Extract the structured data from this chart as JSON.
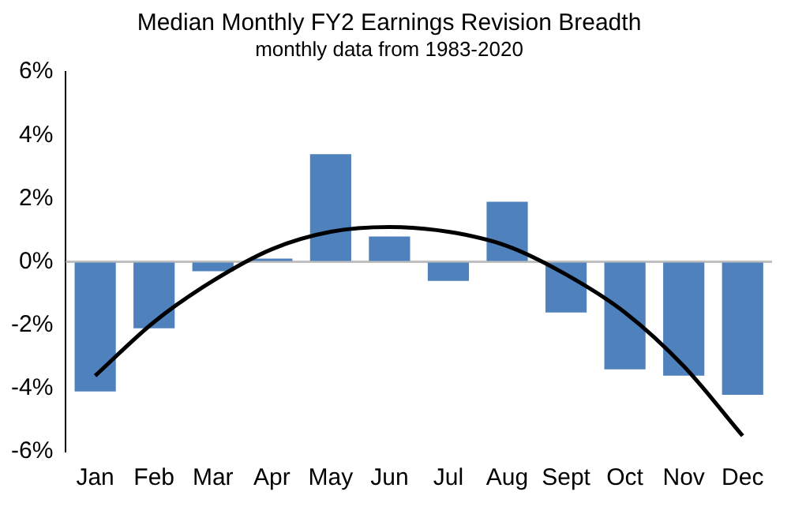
{
  "chart_data": {
    "type": "bar",
    "title": "Median Monthly FY2 Earnings Revision Breadth",
    "subtitle": "monthly data from 1983-2020",
    "categories": [
      "Jan",
      "Feb",
      "Mar",
      "Apr",
      "May",
      "Jun",
      "Jul",
      "Aug",
      "Sept",
      "Oct",
      "Nov",
      "Dec"
    ],
    "series": [
      {
        "color": "#4f81bd",
        "values": [
          -4.1,
          -2.1,
          -0.3,
          0.1,
          3.4,
          0.8,
          -0.6,
          1.9,
          -1.6,
          -3.4,
          -3.6,
          -4.2
        ]
      },
      {
        "type": "line",
        "color": "#000000",
        "marker": "none",
        "line_style": "solid",
        "values": [
          -3.6,
          -1.9,
          -0.6,
          0.4,
          0.95,
          1.1,
          0.95,
          0.5,
          -0.4,
          -1.6,
          -3.3,
          -5.5
        ]
      }
    ],
    "ylim": [
      -6,
      6
    ],
    "yticks": [
      {
        "value": -6,
        "label": "-6%"
      },
      {
        "value": -4,
        "label": "-4%"
      },
      {
        "value": -2,
        "label": "-2%"
      },
      {
        "value": 0,
        "label": "0%"
      },
      {
        "value": 2,
        "label": "2%"
      },
      {
        "value": 4,
        "label": "4%"
      },
      {
        "value": 6,
        "label": "6%"
      }
    ],
    "ref_lines": [
      {
        "axis": "y",
        "value": 0,
        "color": "#bfbfbf"
      }
    ],
    "grid": false,
    "legend": false
  }
}
